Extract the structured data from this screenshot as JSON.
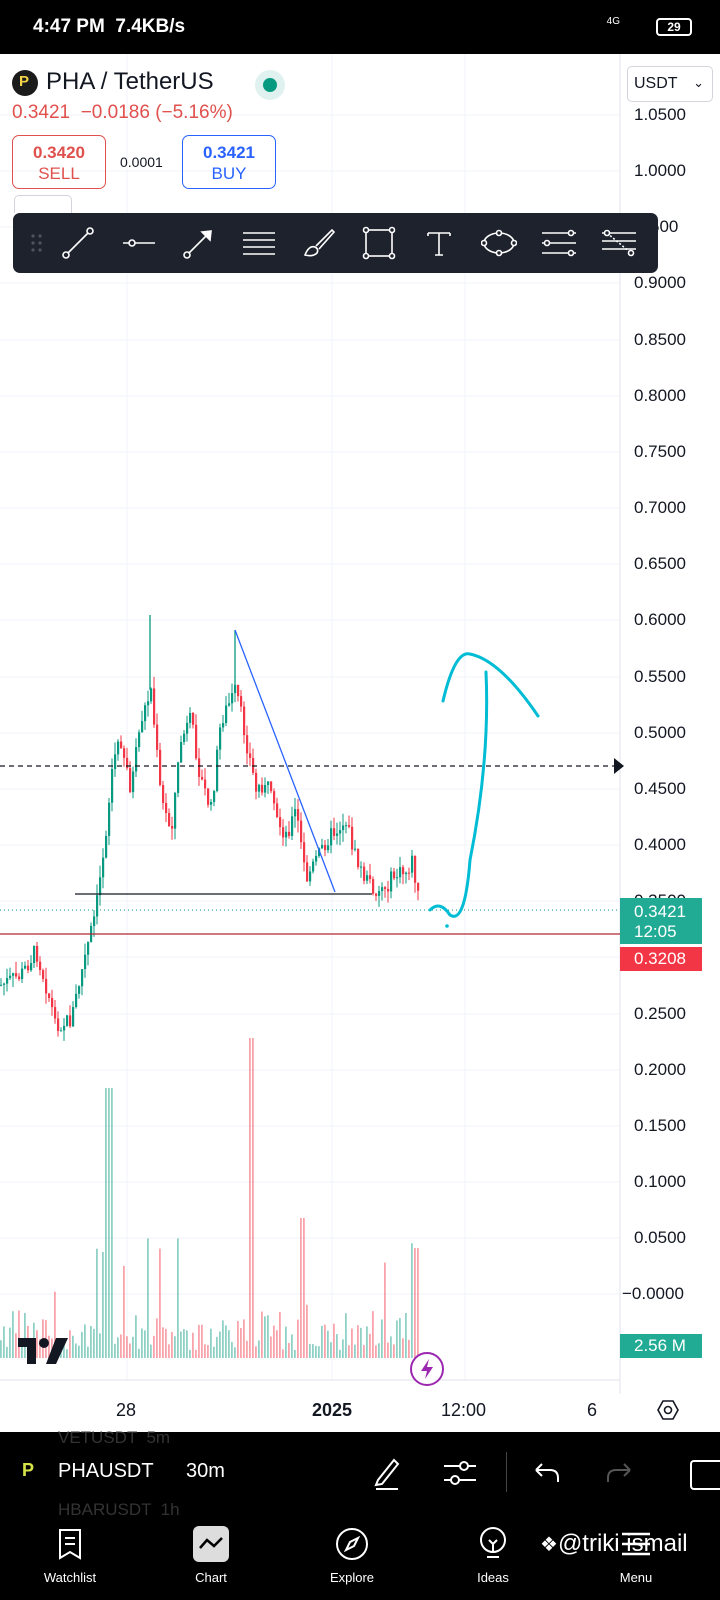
{
  "status": {
    "time": "4:47 PM",
    "speed": "7.4KB/s",
    "network": "4G",
    "battery": "29"
  },
  "header": {
    "symbol": "PHA / TetherUS",
    "price": "0.3421",
    "change": "−0.0186",
    "change_pct": "(−5.16%)",
    "sell_price": "0.3420",
    "sell_label": "SELL",
    "spread": "0.0001",
    "buy_price": "0.3421",
    "buy_label": "BUY"
  },
  "axis": {
    "currency": "USDT",
    "labels": [
      "1.0500",
      "1.0000",
      "0.9500",
      "0.9000",
      "0.8500",
      "0.8000",
      "0.7500",
      "0.7000",
      "0.6500",
      "0.6000",
      "0.5500",
      "0.5000",
      "0.4500",
      "0.4000",
      "0.3500",
      "0.3000",
      "0.2500",
      "0.2000",
      "0.1500",
      "0.1000",
      "0.0500",
      "−0.0000"
    ],
    "last_price": "0.3421",
    "countdown": "12:05",
    "line_price": "0.3208",
    "volume": "2.56 M",
    "time_labels": [
      "28",
      "2025",
      "12:00",
      "6"
    ]
  },
  "toolbar": {
    "icons": [
      "drag-handle-icon",
      "trend-line-icon",
      "horizontal-line-icon",
      "arrow-icon",
      "horizontal-lines-icon",
      "brush-icon",
      "rectangle-icon",
      "text-icon",
      "ellipse-icon",
      "parallel-channel-icon",
      "fib-retracement-icon"
    ]
  },
  "bottom": {
    "symbol": "PHAUSDT",
    "interval": "30m",
    "bg_rows": [
      "VETUSDT  5m",
      "HBARUSDT  1h"
    ]
  },
  "nav": {
    "items": [
      "Watchlist",
      "Chart",
      "Explore",
      "Ideas",
      "Menu"
    ],
    "watermark": "@triki ismail"
  },
  "colors": {
    "up": "#089981",
    "down": "#f23645",
    "accent": "#2962ff",
    "drawing": "#00bcd4"
  }
}
